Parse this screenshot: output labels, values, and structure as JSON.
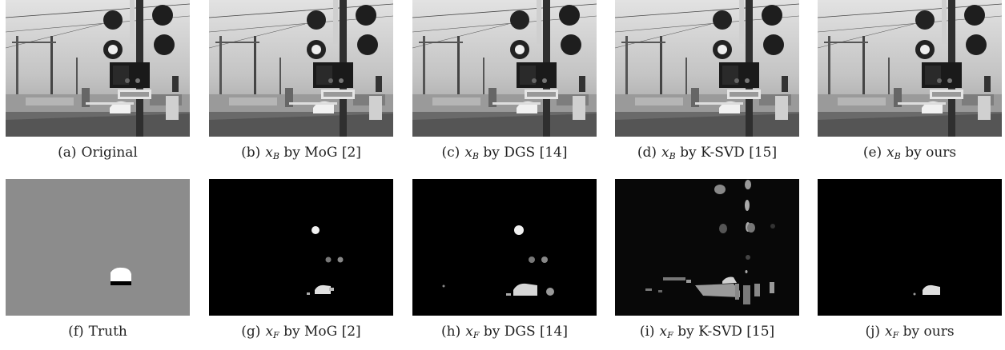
{
  "figure": {
    "row_top": [
      {
        "label": "(a)",
        "method": "Original"
      },
      {
        "label": "(b)",
        "var": "x",
        "sub": "B",
        "method": "by MoG [2]"
      },
      {
        "label": "(c)",
        "var": "x",
        "sub": "B",
        "method": "by DGS [14]"
      },
      {
        "label": "(d)",
        "var": "x",
        "sub": "B",
        "method": "by K-SVD [15]"
      },
      {
        "label": "(e)",
        "var": "x",
        "sub": "B",
        "method": "by ours"
      }
    ],
    "row_bottom": [
      {
        "label": "(f)",
        "method": "Truth"
      },
      {
        "label": "(g)",
        "var": "x",
        "sub": "F",
        "method": "by MoG [2]"
      },
      {
        "label": "(h)",
        "var": "x",
        "sub": "F",
        "method": "by DGS [14]"
      },
      {
        "label": "(i)",
        "var": "x",
        "sub": "F",
        "method": "by K-SVD [15]"
      },
      {
        "label": "(j)",
        "var": "x",
        "sub": "F",
        "method": "by ours"
      }
    ]
  }
}
